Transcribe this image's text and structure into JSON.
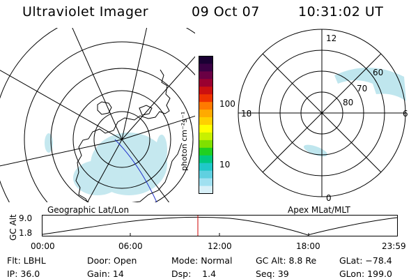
{
  "header": {
    "instrument": "Ultraviolet Imager",
    "date": "09 Oct 07",
    "time": "10:31:02 UT"
  },
  "colorbar": {
    "unit_label": "photon cm⁻²s⁻¹",
    "ticks": [
      "100",
      "10"
    ],
    "colors": [
      "#1a0033",
      "#3a0044",
      "#6a0044",
      "#9a0030",
      "#cc1010",
      "#ee3300",
      "#ff7a00",
      "#ffaa00",
      "#ffd000",
      "#ffff00",
      "#c8f000",
      "#80e000",
      "#20d020",
      "#00c880",
      "#20c8c8",
      "#60d0e0",
      "#a0e0f0",
      "#d8f0f8"
    ]
  },
  "geo_map": {
    "label": "Geographic Lat/Lon"
  },
  "mag_map": {
    "label": "Apex MLat/MLT",
    "mlt_labels": {
      "top": "12",
      "bottom": "0",
      "left": "18",
      "right": "6"
    },
    "lat_labels": [
      "60",
      "70",
      "80"
    ]
  },
  "altitude_plot": {
    "ylabel": "GC Alt",
    "yticks": [
      "9.0",
      "1.8"
    ],
    "xticks": [
      "00:00",
      "06:00",
      "12:00",
      "18:00",
      "23:59"
    ],
    "current_time_marker_color": "#cc0000"
  },
  "footer": {
    "flt": "Flt: LBHL",
    "ip": "IP: 36.0",
    "door": "Door: Open",
    "gain": "Gain: 14",
    "mode": "Mode: Normal",
    "dsp": "Dsp:    1.4",
    "gc_alt": "GC Alt: 8.8 Re",
    "seq": "Seq: 39",
    "glat": "GLat: −78.4",
    "glon": "GLon: 199.0"
  }
}
